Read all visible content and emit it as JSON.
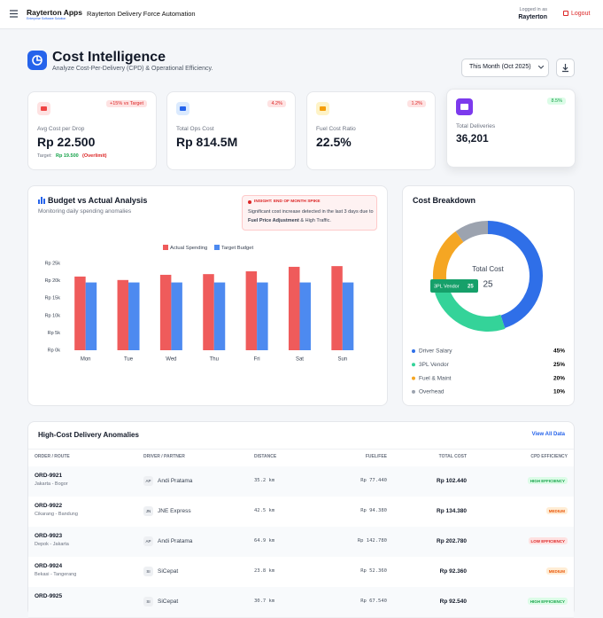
{
  "header": {
    "brand": "Rayterton Apps",
    "brand_sub": "Enterprise Software Solution",
    "app_title": "Rayterton Delivery Force Automation",
    "logged_label": "Logged in as",
    "user": "Rayterton",
    "logout": "Logout"
  },
  "page": {
    "title": "Cost Intelligence",
    "subtitle": "Analyze Cost-Per-Delivery (CPD) & Operational Efficiency.",
    "period": "This Month (Oct 2025)"
  },
  "kpis": [
    {
      "label": "Avg Cost per Drop",
      "value": "Rp 22.500",
      "badge": "+15% vs Target",
      "icon_color": "#ef4444",
      "icon_bg": "#fee2e2",
      "note_label": "Target:",
      "note_target": "Rp 19.500",
      "note_status": "(Overlimit)"
    },
    {
      "label": "Total Ops Cost",
      "value": "Rp 814.5M",
      "badge": "4.2%",
      "icon_color": "#2563eb",
      "icon_bg": "#dbeafe"
    },
    {
      "label": "Fuel Cost Ratio",
      "value": "22.5%",
      "badge": "1.2%",
      "icon_color": "#f59e0b",
      "icon_bg": "#fef3c7"
    },
    {
      "label": "Total Deliveries",
      "value": "36,201",
      "badge": "8.5%",
      "icon_color": "#ffffff",
      "icon_bg": "#7c3aed"
    }
  ],
  "budget_chart": {
    "type": "bar",
    "title": "Budget vs Actual Analysis",
    "subtitle": "Monitoring daily spending anomalies",
    "insight_title": "INSIGHT: END OF MONTH SPIKE",
    "insight_text": "Significant cost increase detected in the last 3 days due to",
    "insight_bold": "Fuel Price Adjustment",
    "insight_tail": "& High Traffic.",
    "categories": [
      "Mon",
      "Tue",
      "Wed",
      "Thu",
      "Fri",
      "Sat",
      "Sun"
    ],
    "series": [
      {
        "name": "Actual Spending",
        "color": "#ef5b5b",
        "values": [
          21200,
          20200,
          21700,
          21900,
          22700,
          24000,
          24200
        ]
      },
      {
        "name": "Target Budget",
        "color": "#4d8af0",
        "values": [
          19500,
          19500,
          19500,
          19500,
          19500,
          19500,
          19500
        ]
      }
    ],
    "ylim": [
      0,
      25000
    ],
    "yticks": [
      {
        "value": 0,
        "label": "Rp 0k"
      },
      {
        "value": 5000,
        "label": "Rp 5k"
      },
      {
        "value": 10000,
        "label": "Rp 10k"
      },
      {
        "value": 15000,
        "label": "Rp 15k"
      },
      {
        "value": 20000,
        "label": "Rp 20k"
      },
      {
        "value": 25000,
        "label": "Rp 25k"
      }
    ],
    "grid": false
  },
  "cost_breakdown": {
    "type": "donut",
    "title": "Cost Breakdown",
    "center_label": "Total Cost",
    "labels": [
      "Driver Salary",
      "3PL Vendor",
      "Fuel & Maint",
      "Overhead"
    ],
    "colors": [
      "#2f6fe8",
      "#34d399",
      "#f5a623",
      "#9ca3af"
    ],
    "values": [
      45,
      25,
      20,
      10
    ],
    "value_labels": [
      "45%",
      "25%",
      "20%",
      "10%"
    ]
  },
  "table": {
    "title": "High-Cost Delivery Anomalies",
    "link": "View All Data",
    "columns": [
      "ORDER / ROUTE",
      "DRIVER / PARTNER",
      "DISTANCE",
      "FUEL/FEE",
      "TOTAL COST",
      "CPD EFFICIENCY"
    ],
    "rows": [
      {
        "order": "ORD-9921",
        "route": "Jakarta - Bogor",
        "initials": "AP",
        "driver": "Andi Pratama",
        "distance": "35.2 km",
        "fee": "Rp 77.440",
        "total": "Rp 102.440",
        "efficiency": "HIGH EFFICIENCY",
        "badge_color": "#16a34a",
        "badge_bg": "#dcfce7"
      },
      {
        "order": "ORD-9922",
        "route": "Cikarang - Bandung",
        "initials": "JN",
        "driver": "JNE Express",
        "distance": "42.5 km",
        "fee": "Rp 94.380",
        "total": "Rp 134.380",
        "efficiency": "MEDIUM",
        "badge_color": "#ea580c",
        "badge_bg": "#ffedd5"
      },
      {
        "order": "ORD-9923",
        "route": "Depok - Jakarta",
        "initials": "AP",
        "driver": "Andi Pratama",
        "distance": "64.9 km",
        "fee": "Rp 142.780",
        "total": "Rp 202.780",
        "efficiency": "LOW EFFICIENCY",
        "badge_color": "#dc2626",
        "badge_bg": "#fee2e2"
      },
      {
        "order": "ORD-9924",
        "route": "Bekasi - Tangerang",
        "initials": "SI",
        "driver": "SiCepat",
        "distance": "23.8 km",
        "fee": "Rp 52.360",
        "total": "Rp 92.360",
        "efficiency": "MEDIUM",
        "badge_color": "#ea580c",
        "badge_bg": "#ffedd5"
      },
      {
        "order": "ORD-9925",
        "initials": "SI",
        "driver": "SiCepat",
        "distance": "30.7 km",
        "fee": "Rp 67.540",
        "total": "Rp 92.540",
        "efficiency": "HIGH EFFICIENCY",
        "badge_color": "#16a34a",
        "badge_bg": "#dcfce7"
      }
    ]
  }
}
